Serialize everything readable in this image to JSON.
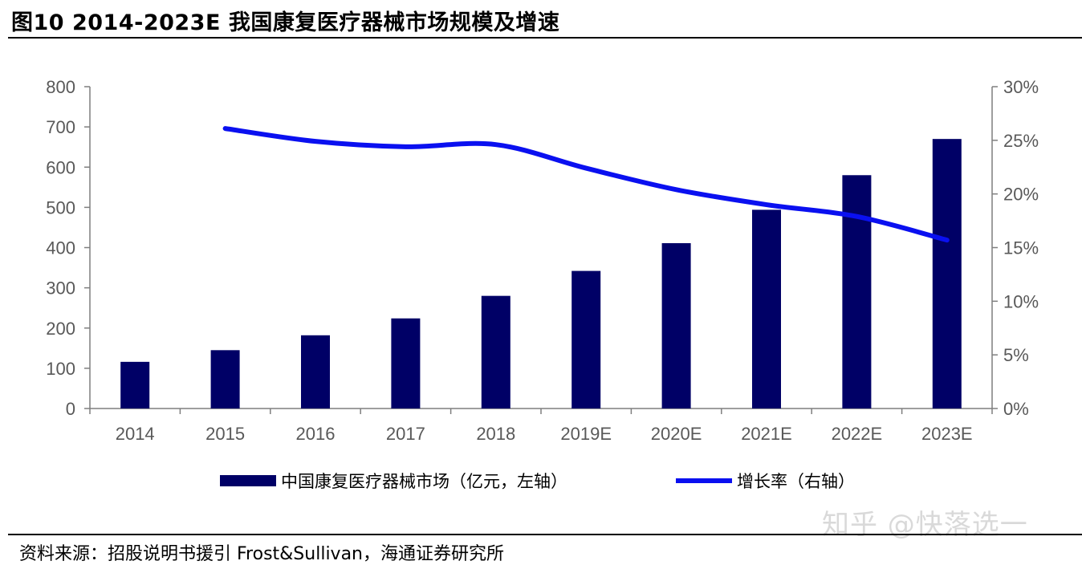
{
  "title": "图10 2014-2023E 我国康复医疗器械市场规模及增速",
  "source": "资料来源：招股说明书援引 Frost&Sullivan，海通证券研究所",
  "watermark": "知乎 @快落选一",
  "colors": {
    "bar": "#000066",
    "line": "#0a10f0",
    "axis": "#7f7f7f",
    "text": "#595959"
  },
  "chart_data": {
    "type": "bar",
    "categories": [
      "2014",
      "2015",
      "2016",
      "2017",
      "2018",
      "2019E",
      "2020E",
      "2021E",
      "2022E",
      "2023E"
    ],
    "series": [
      {
        "name": "中国康复医疗器械市场（亿元，左轴）",
        "type": "bar",
        "axis": "left",
        "values": [
          116,
          145,
          182,
          224,
          280,
          342,
          411,
          494,
          580,
          670
        ]
      },
      {
        "name": "增长率（右轴）",
        "type": "line",
        "axis": "right",
        "values": [
          null,
          26.1,
          24.9,
          24.4,
          24.6,
          22.4,
          20.4,
          19.0,
          17.9,
          15.7
        ]
      }
    ],
    "y_left": {
      "min": 0,
      "max": 800,
      "ticks": [
        0,
        100,
        200,
        300,
        400,
        500,
        600,
        700,
        800
      ]
    },
    "y_right": {
      "min": 0,
      "max": 30,
      "ticks": [
        "0%",
        "5%",
        "10%",
        "15%",
        "20%",
        "25%",
        "30%"
      ]
    },
    "legend": "bottom",
    "grid": false
  }
}
